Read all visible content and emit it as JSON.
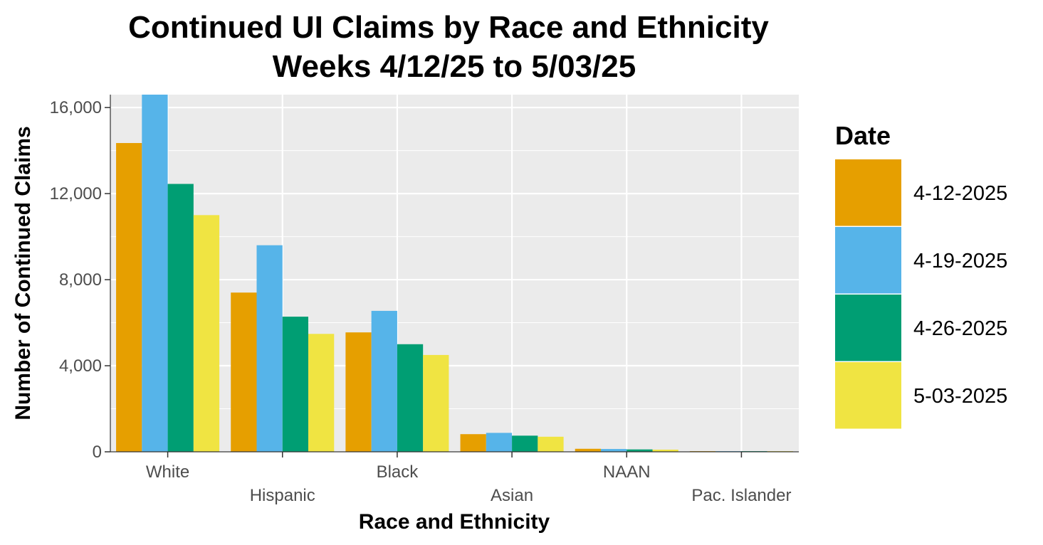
{
  "chart_data": {
    "type": "bar",
    "title": "Continued UI Claims by Race and Ethnicity",
    "subtitle": "Weeks 4/12/25 to 5/03/25",
    "xlabel": "Race and Ethnicity",
    "ylabel": "Number of Continued Claims",
    "categories": [
      "White",
      "Hispanic",
      "Black",
      "Asian",
      "NAAN",
      "Pac. Islander"
    ],
    "series": [
      {
        "name": "4-12-2025",
        "color": "#E69F00",
        "values": [
          14350,
          7400,
          5550,
          820,
          140,
          30
        ]
      },
      {
        "name": "4-19-2025",
        "color": "#56B4E9",
        "values": [
          16600,
          9600,
          6550,
          880,
          130,
          30
        ]
      },
      {
        "name": "4-26-2025",
        "color": "#009E73",
        "values": [
          12450,
          6280,
          5000,
          750,
          110,
          30
        ]
      },
      {
        "name": "5-03-2025",
        "color": "#F0E442",
        "values": [
          11000,
          5480,
          4500,
          700,
          100,
          30
        ]
      }
    ],
    "ylim": [
      0,
      16600
    ],
    "yticks": [
      0,
      4000,
      8000,
      12000,
      16000
    ],
    "ytick_labels": [
      "0",
      "4,000",
      "8,000",
      "12,000",
      "16,000"
    ],
    "legend": {
      "title": "Date",
      "position": "right"
    },
    "grid": true,
    "panel_background": "#EBEBEB"
  }
}
